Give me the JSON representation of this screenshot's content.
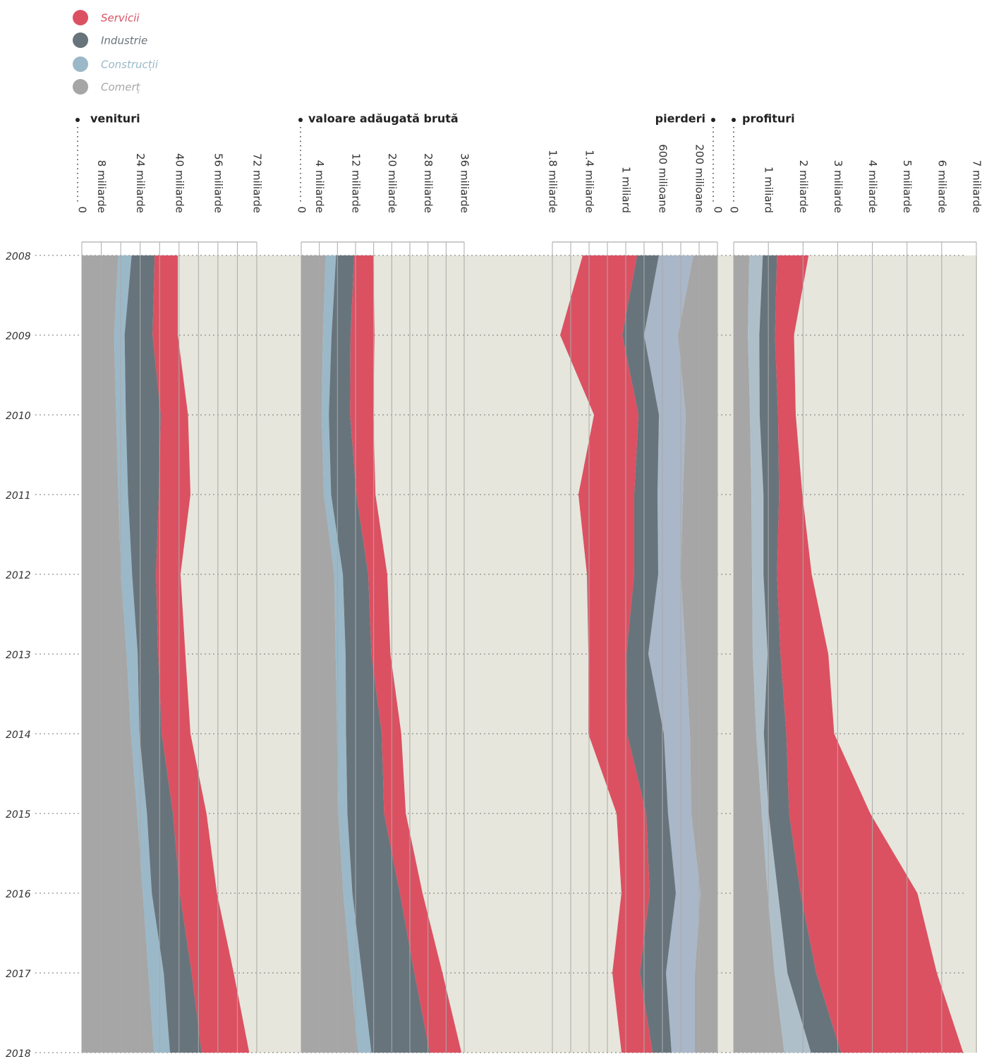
{
  "chart_data": [
    {
      "type": "stacked-area",
      "title": "venituri",
      "categories": [
        "2008",
        "2009",
        "2010",
        "2011",
        "2012",
        "2013",
        "2014",
        "2015",
        "2016",
        "2017",
        "2018"
      ],
      "xlim": [
        0,
        72
      ],
      "xticks": [
        0,
        {
          "value": 8,
          "label": "8 miliarde"
        },
        {
          "value": 24,
          "label": "24 miliarde"
        },
        {
          "value": 40,
          "label": "40 miliarde"
        },
        {
          "value": 56,
          "label": "56 miliarde"
        },
        {
          "value": 72,
          "label": "72 miliarde"
        }
      ],
      "xminorticks": [
        16,
        32,
        48,
        64
      ],
      "series": [
        {
          "name": "Comerț",
          "color": "#a6a6a6",
          "values": [
            15.0,
            13.3,
            14.1,
            15.0,
            16.1,
            18.4,
            20.2,
            22.8,
            25.1,
            27.4,
            29.7
          ]
        },
        {
          "name": "Construcții",
          "color": "#9bb8c8",
          "values": [
            5.5,
            4.3,
            4.0,
            4.0,
            4.6,
            4.6,
            3.5,
            4.0,
            3.7,
            6.3,
            6.6
          ]
        },
        {
          "name": "Industrie",
          "color": "#68747c",
          "values": [
            9.5,
            11.5,
            14.4,
            12.7,
            9.8,
            8.4,
            9.2,
            10.7,
            11.5,
            11.5,
            13.0
          ]
        },
        {
          "name": "Servicii",
          "color": "#db5162",
          "values": [
            9.5,
            10.4,
            11.2,
            13.0,
            10.1,
            11.2,
            11.8,
            13.8,
            15.3,
            17.3,
            19.6
          ]
        }
      ]
    },
    {
      "type": "stacked-area",
      "title": "valoare adăugată brută",
      "categories": [
        "2008",
        "2009",
        "2010",
        "2011",
        "2012",
        "2013",
        "2014",
        "2015",
        "2016",
        "2017",
        "2018"
      ],
      "xlim": [
        0,
        36
      ],
      "xticks": [
        0,
        {
          "value": 4,
          "label": "4 miliarde"
        },
        {
          "value": 12,
          "label": "12 miliarde"
        },
        {
          "value": 20,
          "label": "20 miliarde"
        },
        {
          "value": 28,
          "label": "28 miliarde"
        },
        {
          "value": 36,
          "label": "36 miliarde"
        }
      ],
      "xminorticks": [
        8,
        16,
        24,
        32
      ],
      "series": [
        {
          "name": "Comerț",
          "color": "#a6a6a6",
          "values": [
            5.4,
            4.8,
            4.5,
            5.0,
            7.3,
            7.6,
            7.9,
            8.2,
            9.3,
            10.9,
            12.6
          ]
        },
        {
          "name": "Construcții",
          "color": "#9bb8c8",
          "values": [
            2.3,
            1.9,
            1.6,
            1.6,
            1.9,
            2.2,
            2.0,
            2.0,
            2.0,
            2.5,
            2.9
          ]
        },
        {
          "name": "Industrie",
          "color": "#68747c",
          "values": [
            4.0,
            4.2,
            4.7,
            5.6,
            5.6,
            5.7,
            7.9,
            8.1,
            10.5,
            11.6,
            12.9
          ]
        },
        {
          "name": "Servicii",
          "color": "#db5162",
          "values": [
            4.2,
            5.3,
            5.1,
            4.2,
            4.2,
            4.2,
            4.3,
            4.8,
            5.0,
            6.2,
            7.0
          ]
        }
      ]
    },
    {
      "type": "stacked-area",
      "title": "pierderi",
      "categories": [
        "2008",
        "2009",
        "2010",
        "2011",
        "2012",
        "2013",
        "2014",
        "2015",
        "2016",
        "2017",
        "2018"
      ],
      "xlim": [
        1800,
        0
      ],
      "xticks": [
        {
          "value": 1800,
          "label": "1.8 miliarde"
        },
        {
          "value": 1400,
          "label": "1.4 miliarde"
        },
        {
          "value": 1000,
          "label": "1 miliard"
        },
        {
          "value": 600,
          "label": "600 milioane"
        },
        {
          "value": 200,
          "label": "200 milioane"
        },
        0
      ],
      "xminorticks": [
        1600,
        1200,
        800,
        400
      ],
      "series": [
        {
          "name": "Comerț",
          "color": "#a6a6a6",
          "values": [
            262,
            431,
            346,
            377,
            400,
            346,
            300,
            285,
            185,
            246,
            246
          ]
        },
        {
          "name": "Construcții",
          "color": "#a9b7c8",
          "values": [
            377,
            369,
            292,
            277,
            246,
            408,
            285,
            254,
            269,
            315,
            254
          ]
        },
        {
          "name": "Industrie",
          "color": "#68747c",
          "values": [
            238,
            238,
            223,
            254,
            262,
            238,
            400,
            238,
            285,
            285,
            208
          ]
        },
        {
          "name": "Servicii",
          "color": "#db5162",
          "values": [
            592,
            677,
            485,
            608,
            515,
            415,
            423,
            323,
            308,
            300,
            338
          ]
        }
      ]
    },
    {
      "type": "stacked-area",
      "title": "profituri",
      "categories": [
        "2008",
        "2009",
        "2010",
        "2011",
        "2012",
        "2013",
        "2014",
        "2015",
        "2016",
        "2017",
        "2018"
      ],
      "xlim": [
        0,
        7
      ],
      "xticks": [
        0,
        {
          "value": 1,
          "label": "1 miliard"
        },
        {
          "value": 2,
          "label": "2 miliarde"
        },
        {
          "value": 3,
          "label": "3 miliarde"
        },
        {
          "value": 4,
          "label": "4 miliarde"
        },
        {
          "value": 5,
          "label": "5 miliarde"
        },
        {
          "value": 6,
          "label": "6 miliarde"
        },
        {
          "value": 7,
          "label": "7 miliarde"
        }
      ],
      "xminorticks": [],
      "series": [
        {
          "name": "Comerț",
          "color": "#a6a6a6",
          "values": [
            0.45,
            0.41,
            0.47,
            0.51,
            0.53,
            0.55,
            0.65,
            0.81,
            0.98,
            1.18,
            1.46
          ]
        },
        {
          "name": "Construcții",
          "color": "#afbfca",
          "values": [
            0.39,
            0.33,
            0.28,
            0.35,
            0.33,
            0.43,
            0.22,
            0.2,
            0.3,
            0.37,
            0.77
          ]
        },
        {
          "name": "Industrie",
          "color": "#68747c",
          "values": [
            0.41,
            0.45,
            0.53,
            0.45,
            0.39,
            0.37,
            0.65,
            0.59,
            0.65,
            0.83,
            0.87
          ]
        },
        {
          "name": "Servicii",
          "color": "#db5162",
          "values": [
            0.91,
            0.55,
            0.51,
            0.67,
            1.0,
            1.38,
            1.38,
            2.34,
            3.37,
            3.48,
            3.52
          ]
        }
      ]
    }
  ]
}
